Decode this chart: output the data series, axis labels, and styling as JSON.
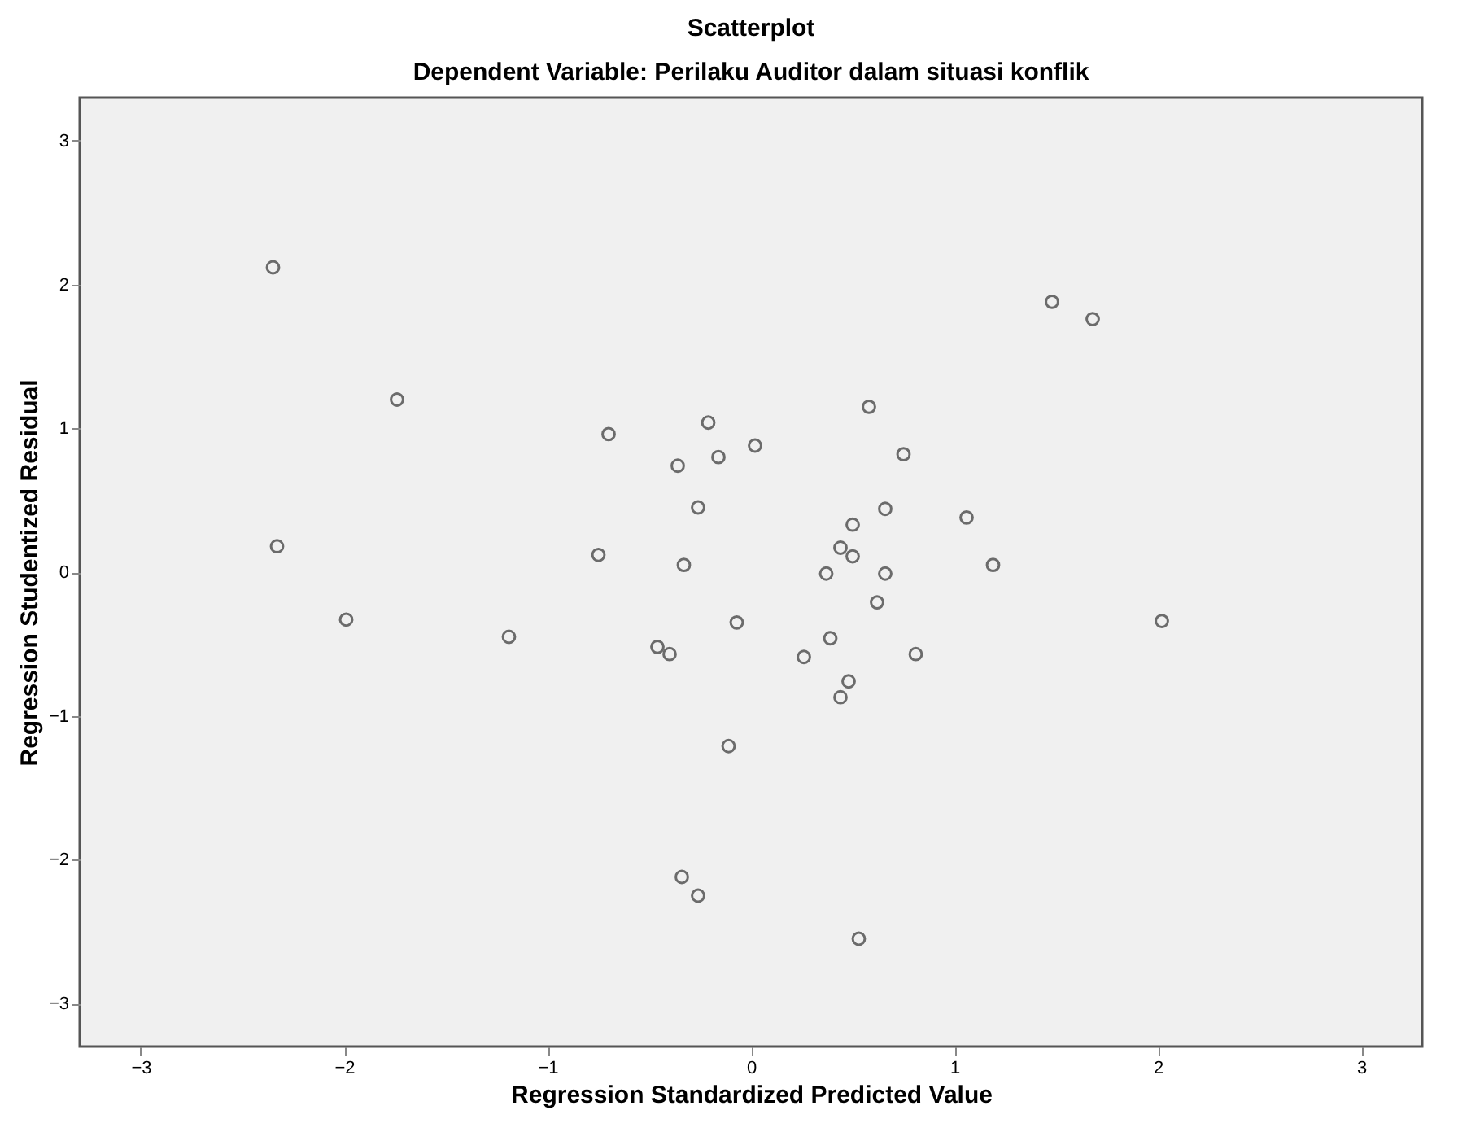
{
  "chart_data": {
    "type": "scatter",
    "title": "Scatterplot",
    "subtitle": "Dependent Variable: Perilaku Auditor dalam situasi konflik",
    "xlabel": "Regression Standardized Predicted Value",
    "ylabel": "Regression Studentized Residual",
    "x": [
      -2.35,
      -1.74,
      -2.33,
      -1.99,
      -1.19,
      -0.7,
      -0.75,
      -0.36,
      -0.21,
      -0.16,
      0.02,
      -0.26,
      -0.33,
      -0.46,
      -0.4,
      -0.07,
      -0.11,
      -0.34,
      -0.26,
      0.26,
      0.39,
      0.44,
      0.48,
      0.37,
      0.44,
      0.5,
      0.5,
      0.58,
      0.66,
      0.66,
      0.62,
      0.75,
      0.81,
      1.06,
      1.19,
      1.48,
      1.68,
      2.02,
      0.53
    ],
    "series": [
      {
        "color": "#333333",
        "values": [
          2.12,
          1.2,
          0.18,
          -0.33,
          -0.45,
          0.96,
          0.12,
          0.74,
          1.04,
          0.8,
          0.88,
          0.45,
          0.05,
          -0.52,
          -0.57,
          -0.35,
          -1.21,
          -2.12,
          -2.25,
          -0.59,
          -0.46,
          -0.87,
          -0.76,
          -0.01,
          0.17,
          0.33,
          0.11,
          1.15,
          0.44,
          -0.01,
          -0.21,
          0.82,
          -0.57,
          0.38,
          0.05,
          1.88,
          1.76,
          -0.34,
          -2.55
        ]
      }
    ],
    "xlim": [
      -3.3,
      3.3
    ],
    "ylim": [
      -3.3,
      3.3
    ],
    "xticks": [
      -3,
      -2,
      -1,
      0,
      1,
      2,
      3
    ],
    "yticks": [
      -3,
      -2,
      -1,
      0,
      1,
      2,
      3
    ],
    "marker": "circle",
    "legend": false
  }
}
